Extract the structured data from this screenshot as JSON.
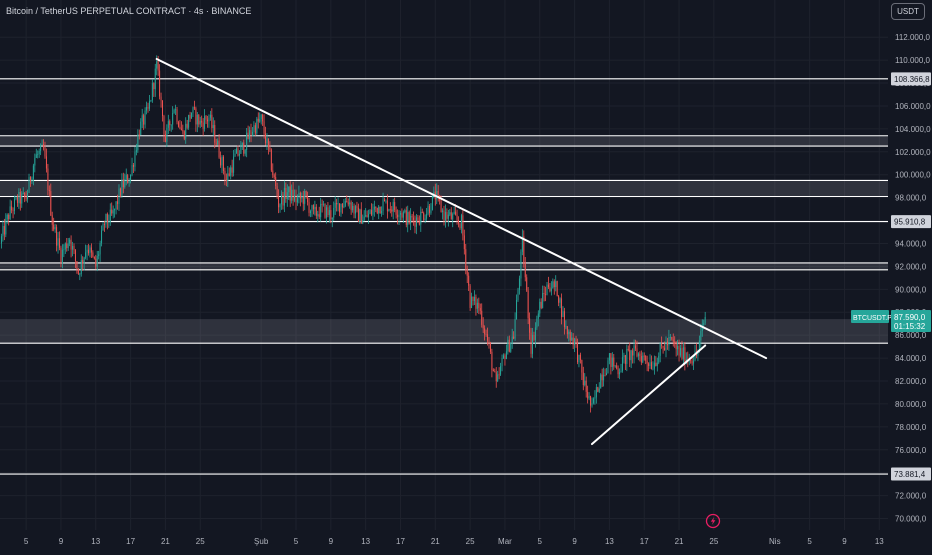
{
  "header": {
    "title": "Bitcoin / TetherUS PERPETUAL CONTRACT · 4s · BINANCE",
    "quote_currency": "USDT"
  },
  "chart_data": {
    "type": "candlestick",
    "title": "Bitcoin / TetherUS PERPETUAL CONTRACT · 4s · BINANCE",
    "ylim": [
      69000,
      113500
    ],
    "y_ticks": [
      "70.000,0",
      "72.000,0",
      "74.000,0",
      "76.000,0",
      "78.000,0",
      "80.000,0",
      "82.000,0",
      "84.000,0",
      "86.000,0",
      "88.000,0",
      "90.000,0",
      "92.000,0",
      "94.000,0",
      "96.000,0",
      "98.000,0",
      "100.000,0",
      "102.000,0",
      "104.000,0",
      "106.000,0",
      "108.000,0",
      "110.000,0",
      "112.000,0"
    ],
    "x_range": [
      "2025-01-02",
      "2025-04-14"
    ],
    "x_ticks": [
      {
        "date": "2025-01-05",
        "label": "5"
      },
      {
        "date": "2025-01-09",
        "label": "9"
      },
      {
        "date": "2025-01-13",
        "label": "13"
      },
      {
        "date": "2025-01-17",
        "label": "17"
      },
      {
        "date": "2025-01-21",
        "label": "21"
      },
      {
        "date": "2025-01-25",
        "label": "25"
      },
      {
        "date": "2025-02-01",
        "label": "Şub"
      },
      {
        "date": "2025-02-05",
        "label": "5"
      },
      {
        "date": "2025-02-09",
        "label": "9"
      },
      {
        "date": "2025-02-13",
        "label": "13"
      },
      {
        "date": "2025-02-17",
        "label": "17"
      },
      {
        "date": "2025-02-21",
        "label": "21"
      },
      {
        "date": "2025-02-25",
        "label": "25"
      },
      {
        "date": "2025-03-01",
        "label": "Mar"
      },
      {
        "date": "2025-03-05",
        "label": "5"
      },
      {
        "date": "2025-03-09",
        "label": "9"
      },
      {
        "date": "2025-03-13",
        "label": "13"
      },
      {
        "date": "2025-03-17",
        "label": "17"
      },
      {
        "date": "2025-03-21",
        "label": "21"
      },
      {
        "date": "2025-03-25",
        "label": "25"
      },
      {
        "date": "2025-04-01",
        "label": "Nis"
      },
      {
        "date": "2025-04-05",
        "label": "5"
      },
      {
        "date": "2025-04-09",
        "label": "9"
      },
      {
        "date": "2025-04-13",
        "label": "13"
      }
    ],
    "horizontal_levels": [
      {
        "value": 108366.8,
        "label": "108.366,8"
      },
      {
        "value": 95910.8,
        "label": "95.910,8"
      },
      {
        "value": 73881.4,
        "label": "73.881,4"
      },
      {
        "value": 103400
      },
      {
        "value": 102500
      },
      {
        "value": 99500
      },
      {
        "value": 98100
      },
      {
        "value": 92300
      },
      {
        "value": 91700
      },
      {
        "value": 85300
      }
    ],
    "zones": [
      {
        "from": 102500,
        "to": 103400
      },
      {
        "from": 98100,
        "to": 99500
      },
      {
        "from": 91700,
        "to": 92300
      },
      {
        "from": 85300,
        "to": 87400
      }
    ],
    "trendlines": [
      {
        "from": {
          "date": "2025-01-20",
          "price": 110100
        },
        "to": {
          "date": "2025-03-31",
          "price": 84000
        }
      },
      {
        "from": {
          "date": "2025-03-11",
          "price": 76500
        },
        "to": {
          "date": "2025-03-24",
          "price": 85100
        }
      }
    ],
    "series_path": [
      [
        "2025-01-02",
        94000
      ],
      [
        "2025-01-03",
        96500
      ],
      [
        "2025-01-04",
        97800
      ],
      [
        "2025-01-05",
        98000
      ],
      [
        "2025-01-06",
        101500
      ],
      [
        "2025-01-07",
        102200
      ],
      [
        "2025-01-08",
        96000
      ],
      [
        "2025-01-09",
        93000
      ],
      [
        "2025-01-10",
        94500
      ],
      [
        "2025-01-11",
        91500
      ],
      [
        "2025-01-12",
        93800
      ],
      [
        "2025-01-13",
        92000
      ],
      [
        "2025-01-14",
        95800
      ],
      [
        "2025-01-15",
        96500
      ],
      [
        "2025-01-16",
        99000
      ],
      [
        "2025-01-17",
        100000
      ],
      [
        "2025-01-18",
        104000
      ],
      [
        "2025-01-19",
        105500
      ],
      [
        "2025-01-20",
        109500
      ],
      [
        "2025-01-21",
        103000
      ],
      [
        "2025-01-22",
        106000
      ],
      [
        "2025-01-23",
        103500
      ],
      [
        "2025-01-24",
        105500
      ],
      [
        "2025-01-25",
        104500
      ],
      [
        "2025-01-26",
        105000
      ],
      [
        "2025-01-27",
        102500
      ],
      [
        "2025-01-28",
        99500
      ],
      [
        "2025-01-29",
        101500
      ],
      [
        "2025-01-30",
        102500
      ],
      [
        "2025-01-31",
        104000
      ],
      [
        "2025-02-01",
        104800
      ],
      [
        "2025-02-02",
        101500
      ],
      [
        "2025-02-03",
        97500
      ],
      [
        "2025-02-04",
        98500
      ],
      [
        "2025-02-05",
        97800
      ],
      [
        "2025-02-06",
        98000
      ],
      [
        "2025-02-07",
        96500
      ],
      [
        "2025-02-08",
        97000
      ],
      [
        "2025-02-09",
        96500
      ],
      [
        "2025-02-10",
        97400
      ],
      [
        "2025-02-11",
        97800
      ],
      [
        "2025-02-12",
        96500
      ],
      [
        "2025-02-13",
        96200
      ],
      [
        "2025-02-14",
        97000
      ],
      [
        "2025-02-15",
        97500
      ],
      [
        "2025-02-16",
        97200
      ],
      [
        "2025-02-17",
        96800
      ],
      [
        "2025-02-18",
        96000
      ],
      [
        "2025-02-19",
        96200
      ],
      [
        "2025-02-20",
        96800
      ],
      [
        "2025-02-21",
        98200
      ],
      [
        "2025-02-22",
        96500
      ],
      [
        "2025-02-23",
        96200
      ],
      [
        "2025-02-24",
        95800
      ],
      [
        "2025-02-25",
        89000
      ],
      [
        "2025-02-26",
        88500
      ],
      [
        "2025-02-27",
        85500
      ],
      [
        "2025-02-28",
        81500
      ],
      [
        "2025-03-01",
        84500
      ],
      [
        "2025-03-02",
        86000
      ],
      [
        "2025-03-03",
        94000
      ],
      [
        "2025-03-04",
        85000
      ],
      [
        "2025-03-05",
        88500
      ],
      [
        "2025-03-06",
        90500
      ],
      [
        "2025-03-07",
        90000
      ],
      [
        "2025-03-08",
        86500
      ],
      [
        "2025-03-09",
        85500
      ],
      [
        "2025-03-10",
        82000
      ],
      [
        "2025-03-11",
        79500
      ],
      [
        "2025-03-12",
        82500
      ],
      [
        "2025-03-13",
        83800
      ],
      [
        "2025-03-14",
        83000
      ],
      [
        "2025-03-15",
        84200
      ],
      [
        "2025-03-16",
        84500
      ],
      [
        "2025-03-17",
        84000
      ],
      [
        "2025-03-18",
        83500
      ],
      [
        "2025-03-19",
        84800
      ],
      [
        "2025-03-20",
        85500
      ],
      [
        "2025-03-21",
        84500
      ],
      [
        "2025-03-22",
        84000
      ],
      [
        "2025-03-23",
        84200
      ],
      [
        "2025-03-24",
        87590
      ]
    ],
    "last_price": {
      "value": 87590,
      "symbol": "BTCUSDT.P",
      "price_label": "87.590,0",
      "countdown": "01:15:32"
    },
    "up_color": "#26a69a",
    "down_color": "#ef5350",
    "background": "#131722",
    "grid": true
  }
}
